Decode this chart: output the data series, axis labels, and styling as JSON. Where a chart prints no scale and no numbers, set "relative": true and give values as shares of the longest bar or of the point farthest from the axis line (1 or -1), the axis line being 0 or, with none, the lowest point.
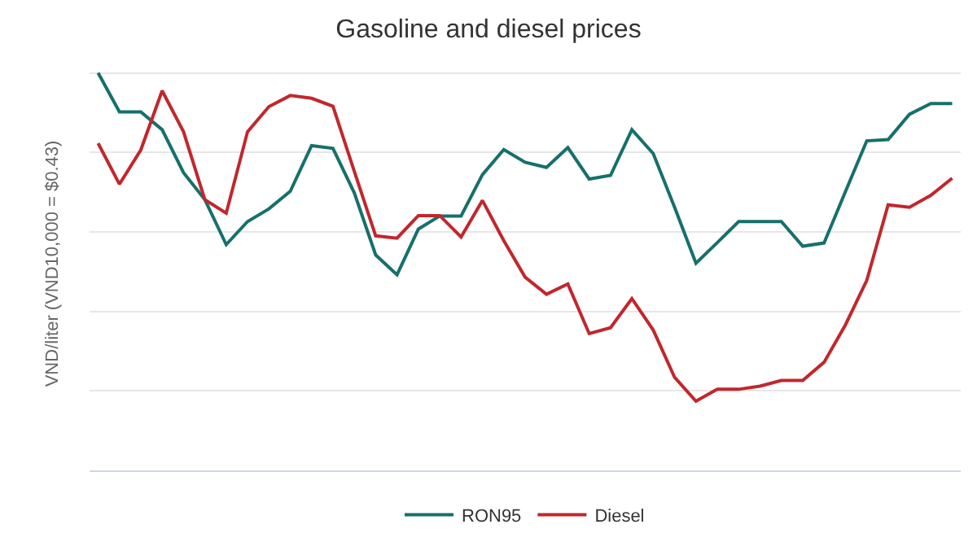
{
  "chart_data": {
    "type": "line",
    "title": "Gasoline and diesel prices",
    "ylabel": "VND/liter (VND10,000 = $0.43)",
    "relative": true,
    "grid": "y",
    "legend": "bottom",
    "marker": "none",
    "line_style": "solid",
    "categories": [
      null,
      null,
      null,
      null,
      null,
      null,
      null,
      null,
      null,
      null,
      null,
      null,
      null,
      null,
      null,
      null,
      null,
      null,
      null,
      null,
      null,
      null,
      null,
      null,
      null,
      null,
      null,
      null,
      null,
      null,
      null,
      null,
      null,
      null,
      null,
      null,
      null,
      null,
      null,
      null,
      null
    ],
    "series": [
      {
        "name": "RON95",
        "color": "#16706b",
        "values": [
          1.0,
          0.902,
          0.902,
          0.857,
          0.749,
          0.681,
          0.568,
          0.626,
          0.658,
          0.702,
          0.817,
          0.81,
          0.698,
          0.542,
          0.492,
          0.607,
          0.64,
          0.64,
          0.744,
          0.807,
          0.775,
          0.762,
          0.812,
          0.733,
          0.742,
          0.857,
          0.797,
          0.662,
          0.521,
          0.573,
          0.626,
          0.626,
          0.626,
          0.564,
          0.572,
          0.701,
          0.829,
          0.832,
          0.896,
          0.923,
          0.923
        ]
      },
      {
        "name": "Diesel",
        "color": "#c1272d",
        "values": [
          0.823,
          0.72,
          0.806,
          0.955,
          0.852,
          0.681,
          0.647,
          0.852,
          0.915,
          0.943,
          0.936,
          0.916,
          0.752,
          0.59,
          0.584,
          0.641,
          0.641,
          0.587,
          0.679,
          0.578,
          0.486,
          0.443,
          0.469,
          0.344,
          0.359,
          0.432,
          0.353,
          0.234,
          0.174,
          0.204,
          0.204,
          0.212,
          0.226,
          0.226,
          0.272,
          0.366,
          0.478,
          0.668,
          0.662,
          0.692,
          0.735
        ]
      }
    ]
  }
}
